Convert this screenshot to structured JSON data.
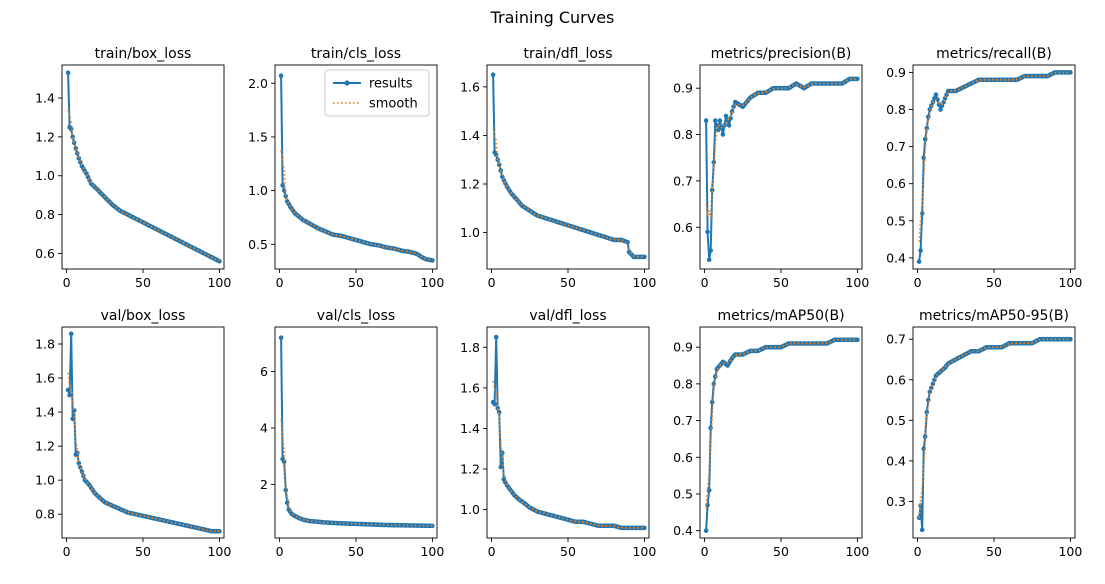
{
  "figure": {
    "title": "Training Curves"
  },
  "legend": {
    "results": "results",
    "smooth": "smooth"
  },
  "colors": {
    "results": "#1f77b4",
    "smooth": "#ff7f0e"
  },
  "chart_data": [
    {
      "type": "line",
      "title": "train/box_loss",
      "xlim": [
        -3,
        103
      ],
      "ylim": [
        0.52,
        1.57
      ],
      "xticks": [
        0,
        50,
        100
      ],
      "yticks": [
        0.6,
        0.8,
        1.0,
        1.2,
        1.4
      ],
      "ytick_decimals": 1,
      "legend": false,
      "anchors": [
        [
          1,
          1.53
        ],
        [
          2,
          1.25
        ],
        [
          3,
          1.24
        ],
        [
          4,
          1.2
        ],
        [
          5,
          1.17
        ],
        [
          6,
          1.14
        ],
        [
          8,
          1.09
        ],
        [
          10,
          1.05
        ],
        [
          13,
          1.01
        ],
        [
          16,
          0.96
        ],
        [
          20,
          0.93
        ],
        [
          25,
          0.89
        ],
        [
          30,
          0.85
        ],
        [
          35,
          0.82
        ],
        [
          40,
          0.8
        ],
        [
          45,
          0.78
        ],
        [
          50,
          0.76
        ],
        [
          55,
          0.74
        ],
        [
          60,
          0.72
        ],
        [
          65,
          0.7
        ],
        [
          70,
          0.68
        ],
        [
          75,
          0.66
        ],
        [
          80,
          0.64
        ],
        [
          85,
          0.62
        ],
        [
          90,
          0.6
        ],
        [
          95,
          0.58
        ],
        [
          100,
          0.56
        ]
      ]
    },
    {
      "type": "line",
      "title": "train/cls_loss",
      "xlim": [
        -3,
        103
      ],
      "ylim": [
        0.27,
        2.17
      ],
      "xticks": [
        0,
        50,
        100
      ],
      "yticks": [
        0.5,
        1.0,
        1.5,
        2.0
      ],
      "ytick_decimals": 1,
      "legend": true,
      "anchors": [
        [
          1,
          2.07
        ],
        [
          2,
          1.05
        ],
        [
          3,
          1.0
        ],
        [
          4,
          0.95
        ],
        [
          5,
          0.9
        ],
        [
          7,
          0.85
        ],
        [
          10,
          0.79
        ],
        [
          15,
          0.73
        ],
        [
          20,
          0.69
        ],
        [
          25,
          0.65
        ],
        [
          30,
          0.62
        ],
        [
          35,
          0.59
        ],
        [
          40,
          0.58
        ],
        [
          45,
          0.56
        ],
        [
          50,
          0.54
        ],
        [
          55,
          0.52
        ],
        [
          60,
          0.5
        ],
        [
          65,
          0.49
        ],
        [
          70,
          0.47
        ],
        [
          75,
          0.46
        ],
        [
          80,
          0.44
        ],
        [
          85,
          0.43
        ],
        [
          90,
          0.41
        ],
        [
          93,
          0.38
        ],
        [
          96,
          0.36
        ],
        [
          100,
          0.35
        ]
      ]
    },
    {
      "type": "line",
      "title": "train/dfl_loss",
      "xlim": [
        -3,
        103
      ],
      "ylim": [
        0.85,
        1.69
      ],
      "xticks": [
        0,
        50,
        100
      ],
      "yticks": [
        1.0,
        1.2,
        1.4,
        1.6
      ],
      "ytick_decimals": 1,
      "legend": false,
      "anchors": [
        [
          1,
          1.65
        ],
        [
          2,
          1.33
        ],
        [
          3,
          1.32
        ],
        [
          5,
          1.28
        ],
        [
          7,
          1.23
        ],
        [
          10,
          1.19
        ],
        [
          13,
          1.16
        ],
        [
          16,
          1.14
        ],
        [
          20,
          1.11
        ],
        [
          25,
          1.09
        ],
        [
          30,
          1.07
        ],
        [
          35,
          1.06
        ],
        [
          40,
          1.05
        ],
        [
          45,
          1.04
        ],
        [
          50,
          1.03
        ],
        [
          55,
          1.02
        ],
        [
          60,
          1.01
        ],
        [
          65,
          1.0
        ],
        [
          70,
          0.99
        ],
        [
          75,
          0.98
        ],
        [
          80,
          0.97
        ],
        [
          85,
          0.97
        ],
        [
          89,
          0.96
        ],
        [
          90,
          0.92
        ],
        [
          93,
          0.9
        ],
        [
          97,
          0.9
        ],
        [
          100,
          0.9
        ]
      ]
    },
    {
      "type": "line",
      "title": "metrics/precision(B)",
      "xlim": [
        -3,
        103
      ],
      "ylim": [
        0.51,
        0.95
      ],
      "xticks": [
        0,
        50,
        100
      ],
      "yticks": [
        0.6,
        0.7,
        0.8,
        0.9
      ],
      "ytick_decimals": 1,
      "legend": false,
      "anchors": [
        [
          1,
          0.83
        ],
        [
          2,
          0.59
        ],
        [
          3,
          0.53
        ],
        [
          4,
          0.55
        ],
        [
          5,
          0.68
        ],
        [
          6,
          0.74
        ],
        [
          7,
          0.83
        ],
        [
          8,
          0.82
        ],
        [
          9,
          0.81
        ],
        [
          10,
          0.83
        ],
        [
          12,
          0.8
        ],
        [
          14,
          0.84
        ],
        [
          16,
          0.82
        ],
        [
          18,
          0.85
        ],
        [
          20,
          0.87
        ],
        [
          25,
          0.86
        ],
        [
          30,
          0.88
        ],
        [
          35,
          0.89
        ],
        [
          40,
          0.89
        ],
        [
          45,
          0.9
        ],
        [
          50,
          0.9
        ],
        [
          55,
          0.9
        ],
        [
          60,
          0.91
        ],
        [
          65,
          0.9
        ],
        [
          70,
          0.91
        ],
        [
          75,
          0.91
        ],
        [
          80,
          0.91
        ],
        [
          85,
          0.91
        ],
        [
          90,
          0.91
        ],
        [
          95,
          0.92
        ],
        [
          100,
          0.92
        ]
      ]
    },
    {
      "type": "line",
      "title": "metrics/recall(B)",
      "xlim": [
        -3,
        103
      ],
      "ylim": [
        0.37,
        0.92
      ],
      "xticks": [
        0,
        50,
        100
      ],
      "yticks": [
        0.4,
        0.5,
        0.6,
        0.7,
        0.8,
        0.9
      ],
      "ytick_decimals": 1,
      "legend": false,
      "anchors": [
        [
          1,
          0.39
        ],
        [
          2,
          0.42
        ],
        [
          3,
          0.52
        ],
        [
          4,
          0.67
        ],
        [
          5,
          0.72
        ],
        [
          6,
          0.75
        ],
        [
          7,
          0.78
        ],
        [
          8,
          0.8
        ],
        [
          10,
          0.82
        ],
        [
          12,
          0.84
        ],
        [
          15,
          0.8
        ],
        [
          18,
          0.83
        ],
        [
          20,
          0.85
        ],
        [
          25,
          0.85
        ],
        [
          30,
          0.86
        ],
        [
          35,
          0.87
        ],
        [
          40,
          0.88
        ],
        [
          45,
          0.88
        ],
        [
          50,
          0.88
        ],
        [
          55,
          0.88
        ],
        [
          60,
          0.88
        ],
        [
          65,
          0.88
        ],
        [
          70,
          0.89
        ],
        [
          75,
          0.89
        ],
        [
          80,
          0.89
        ],
        [
          85,
          0.89
        ],
        [
          90,
          0.9
        ],
        [
          95,
          0.9
        ],
        [
          100,
          0.9
        ]
      ]
    },
    {
      "type": "line",
      "title": "val/box_loss",
      "xlim": [
        -3,
        103
      ],
      "ylim": [
        0.66,
        1.9
      ],
      "xticks": [
        0,
        50,
        100
      ],
      "yticks": [
        0.8,
        1.0,
        1.2,
        1.4,
        1.6,
        1.8
      ],
      "ytick_decimals": 1,
      "legend": false,
      "anchors": [
        [
          1,
          1.53
        ],
        [
          2,
          1.5
        ],
        [
          3,
          1.86
        ],
        [
          4,
          1.36
        ],
        [
          5,
          1.41
        ],
        [
          6,
          1.15
        ],
        [
          7,
          1.16
        ],
        [
          8,
          1.1
        ],
        [
          10,
          1.05
        ],
        [
          12,
          1.0
        ],
        [
          15,
          0.97
        ],
        [
          18,
          0.93
        ],
        [
          20,
          0.91
        ],
        [
          25,
          0.87
        ],
        [
          30,
          0.85
        ],
        [
          35,
          0.83
        ],
        [
          40,
          0.81
        ],
        [
          45,
          0.8
        ],
        [
          50,
          0.79
        ],
        [
          55,
          0.78
        ],
        [
          60,
          0.77
        ],
        [
          65,
          0.76
        ],
        [
          70,
          0.75
        ],
        [
          75,
          0.74
        ],
        [
          80,
          0.73
        ],
        [
          85,
          0.72
        ],
        [
          90,
          0.71
        ],
        [
          95,
          0.7
        ],
        [
          100,
          0.7
        ]
      ]
    },
    {
      "type": "line",
      "title": "val/cls_loss",
      "xlim": [
        -3,
        103
      ],
      "ylim": [
        0.1,
        7.58
      ],
      "xticks": [
        0,
        50,
        100
      ],
      "yticks": [
        2,
        4,
        6
      ],
      "ytick_decimals": 0,
      "legend": false,
      "anchors": [
        [
          1,
          7.2
        ],
        [
          2,
          2.9
        ],
        [
          3,
          2.8
        ],
        [
          4,
          1.8
        ],
        [
          5,
          1.35
        ],
        [
          6,
          1.1
        ],
        [
          8,
          0.95
        ],
        [
          10,
          0.88
        ],
        [
          13,
          0.8
        ],
        [
          16,
          0.74
        ],
        [
          20,
          0.7
        ],
        [
          30,
          0.65
        ],
        [
          40,
          0.62
        ],
        [
          50,
          0.6
        ],
        [
          60,
          0.58
        ],
        [
          70,
          0.56
        ],
        [
          80,
          0.55
        ],
        [
          90,
          0.54
        ],
        [
          100,
          0.53
        ]
      ]
    },
    {
      "type": "line",
      "title": "val/dfl_loss",
      "xlim": [
        -3,
        103
      ],
      "ylim": [
        0.86,
        1.9
      ],
      "xticks": [
        0,
        50,
        100
      ],
      "yticks": [
        1.0,
        1.2,
        1.4,
        1.6,
        1.8
      ],
      "ytick_decimals": 1,
      "legend": false,
      "anchors": [
        [
          1,
          1.53
        ],
        [
          2,
          1.52
        ],
        [
          3,
          1.85
        ],
        [
          4,
          1.5
        ],
        [
          5,
          1.48
        ],
        [
          6,
          1.21
        ],
        [
          7,
          1.28
        ],
        [
          8,
          1.15
        ],
        [
          10,
          1.12
        ],
        [
          12,
          1.1
        ],
        [
          15,
          1.07
        ],
        [
          18,
          1.05
        ],
        [
          20,
          1.04
        ],
        [
          25,
          1.01
        ],
        [
          30,
          0.99
        ],
        [
          35,
          0.98
        ],
        [
          40,
          0.97
        ],
        [
          45,
          0.96
        ],
        [
          50,
          0.95
        ],
        [
          55,
          0.94
        ],
        [
          60,
          0.94
        ],
        [
          65,
          0.93
        ],
        [
          70,
          0.92
        ],
        [
          75,
          0.92
        ],
        [
          80,
          0.92
        ],
        [
          85,
          0.91
        ],
        [
          90,
          0.91
        ],
        [
          95,
          0.91
        ],
        [
          100,
          0.91
        ]
      ]
    },
    {
      "type": "line",
      "title": "metrics/mAP50(B)",
      "xlim": [
        -3,
        103
      ],
      "ylim": [
        0.38,
        0.955
      ],
      "xticks": [
        0,
        50,
        100
      ],
      "yticks": [
        0.4,
        0.5,
        0.6,
        0.7,
        0.8,
        0.9
      ],
      "ytick_decimals": 1,
      "legend": false,
      "anchors": [
        [
          1,
          0.4
        ],
        [
          2,
          0.47
        ],
        [
          3,
          0.51
        ],
        [
          4,
          0.68
        ],
        [
          5,
          0.75
        ],
        [
          6,
          0.8
        ],
        [
          7,
          0.82
        ],
        [
          8,
          0.84
        ],
        [
          10,
          0.85
        ],
        [
          12,
          0.86
        ],
        [
          15,
          0.85
        ],
        [
          18,
          0.87
        ],
        [
          20,
          0.88
        ],
        [
          25,
          0.88
        ],
        [
          30,
          0.89
        ],
        [
          35,
          0.89
        ],
        [
          40,
          0.9
        ],
        [
          45,
          0.9
        ],
        [
          50,
          0.9
        ],
        [
          55,
          0.91
        ],
        [
          60,
          0.91
        ],
        [
          65,
          0.91
        ],
        [
          70,
          0.91
        ],
        [
          75,
          0.91
        ],
        [
          80,
          0.91
        ],
        [
          85,
          0.92
        ],
        [
          90,
          0.92
        ],
        [
          95,
          0.92
        ],
        [
          100,
          0.92
        ]
      ]
    },
    {
      "type": "line",
      "title": "metrics/mAP50-95(B)",
      "xlim": [
        -3,
        103
      ],
      "ylim": [
        0.21,
        0.73
      ],
      "xticks": [
        0,
        50,
        100
      ],
      "yticks": [
        0.3,
        0.4,
        0.5,
        0.6,
        0.7
      ],
      "ytick_decimals": 1,
      "legend": false,
      "anchors": [
        [
          1,
          0.26
        ],
        [
          2,
          0.29
        ],
        [
          3,
          0.23
        ],
        [
          4,
          0.43
        ],
        [
          5,
          0.46
        ],
        [
          6,
          0.52
        ],
        [
          7,
          0.55
        ],
        [
          8,
          0.57
        ],
        [
          10,
          0.59
        ],
        [
          12,
          0.61
        ],
        [
          15,
          0.62
        ],
        [
          18,
          0.63
        ],
        [
          20,
          0.64
        ],
        [
          25,
          0.65
        ],
        [
          30,
          0.66
        ],
        [
          35,
          0.67
        ],
        [
          40,
          0.67
        ],
        [
          45,
          0.68
        ],
        [
          50,
          0.68
        ],
        [
          55,
          0.68
        ],
        [
          60,
          0.69
        ],
        [
          65,
          0.69
        ],
        [
          70,
          0.69
        ],
        [
          75,
          0.69
        ],
        [
          80,
          0.7
        ],
        [
          85,
          0.7
        ],
        [
          90,
          0.7
        ],
        [
          95,
          0.7
        ],
        [
          100,
          0.7
        ]
      ]
    }
  ]
}
